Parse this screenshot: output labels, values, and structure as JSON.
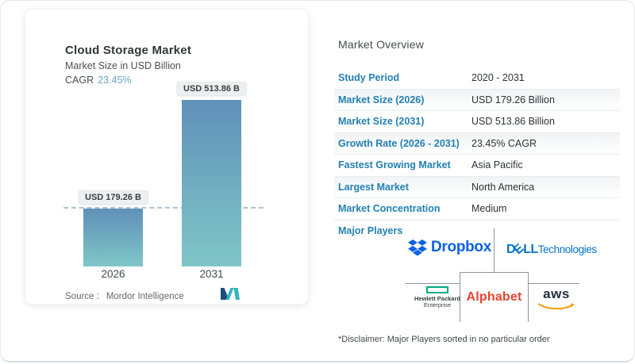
{
  "chart_card": {
    "title": "Cloud Storage Market",
    "subtitle": "Market Size in USD Billion",
    "cagr_label": "CAGR",
    "cagr_value": "23.45%",
    "source_label": "Source :",
    "source_value": "Mordor Intelligence"
  },
  "chart_data": {
    "type": "bar",
    "title": "Cloud Storage Market",
    "subtitle": "Market Size in USD Billion",
    "categories": [
      "2026",
      "2031"
    ],
    "values": [
      179.26,
      513.86
    ],
    "unit": "USD Billion",
    "bar_labels": [
      "USD 179.26 B",
      "USD 513.86 B"
    ],
    "cagr_percent": 23.45,
    "reference_line_y": 179.26,
    "ylim": [
      0,
      560
    ],
    "legend": "none",
    "grid": "off",
    "colors": {
      "bar_gradient_top": "#6091b9",
      "bar_gradient_bottom": "#7fc6c7",
      "dashed_reference_line": "#aec3cd",
      "cagr_accent": "#68a5cc"
    }
  },
  "overview": {
    "heading": "Market Overview",
    "rows": [
      {
        "label": "Study Period",
        "value": "2020 - 2031"
      },
      {
        "label": "Market Size (2026)",
        "value": "USD 179.26 Billion"
      },
      {
        "label": "Market Size (2031)",
        "value": "USD 513.86 Billion"
      },
      {
        "label": "Growth Rate (2026 - 2031)",
        "value": "23.45% CAGR"
      },
      {
        "label": "Fastest Growing Market",
        "value": "Asia Pacific"
      },
      {
        "label": "Largest Market",
        "value": "North America"
      },
      {
        "label": "Market Concentration",
        "value": "Medium"
      }
    ],
    "label_color": "#2280b3",
    "major_players_label": "Major Players",
    "disclaimer": "*Disclaimer: Major Players sorted in no particular order"
  },
  "players": {
    "dropbox": {
      "text": "Dropbox",
      "brand_color": "#0c62e0"
    },
    "dell": {
      "word": "D",
      "word_tilted": "E",
      "word_rest": "LL",
      "suffix": "Technologies",
      "brand_color": "#0672cb"
    },
    "hpe": {
      "line1": "Hewlett Packard",
      "line2": "Enterprise",
      "brand_color": "#01a982"
    },
    "alphabet": {
      "text": "Alphabet",
      "brand_color": "#e8432f"
    },
    "aws": {
      "text": "aws",
      "brand_color": "#ff9900"
    }
  }
}
